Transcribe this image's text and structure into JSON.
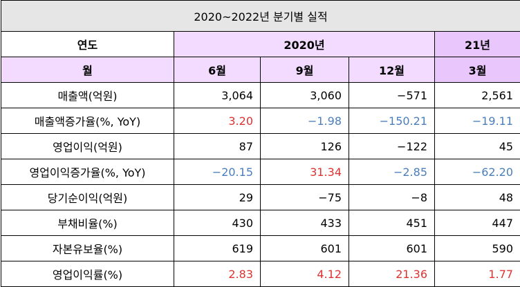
{
  "title": "2020~2022년  분기별  실적",
  "header": {
    "year_label": "연도",
    "month_label": "월",
    "year_2020": "2020년",
    "year_21": "21년",
    "months": [
      "6월",
      "9월",
      "12월",
      "3월"
    ]
  },
  "rows": [
    {
      "label": "매출액(억원)",
      "values": [
        "3,064",
        "3,060",
        "−571",
        "2,561"
      ]
    },
    {
      "label": "매출액증가율(%, YoY)",
      "values": [
        "3.20",
        "−1.98",
        "−150.21",
        "−19.11"
      ]
    },
    {
      "label": "영업이익(억원)",
      "values": [
        "87",
        "126",
        "−122",
        "45"
      ]
    },
    {
      "label": "영업이익증가율(%, YoY)",
      "values": [
        "−20.15",
        "31.34",
        "−2.85",
        "−62.20"
      ]
    },
    {
      "label": "당기순이익(억원)",
      "values": [
        "29",
        "−75",
        "−8",
        "48"
      ]
    },
    {
      "label": "부채비율(%)",
      "values": [
        "430",
        "433",
        "451",
        "447"
      ]
    },
    {
      "label": "자본유보율(%)",
      "values": [
        "619",
        "601",
        "601",
        "590"
      ]
    },
    {
      "label": "영업이익률(%)",
      "values": [
        "2.83",
        "4.12",
        "21.36",
        "1.77"
      ]
    }
  ],
  "colors": {
    "header_fill": "#f2dbff",
    "header_21_fill": "#e9c6fb",
    "title_fill": "#e7e6e6",
    "increase": "#e03131",
    "decrease": "#4a7ebb"
  }
}
